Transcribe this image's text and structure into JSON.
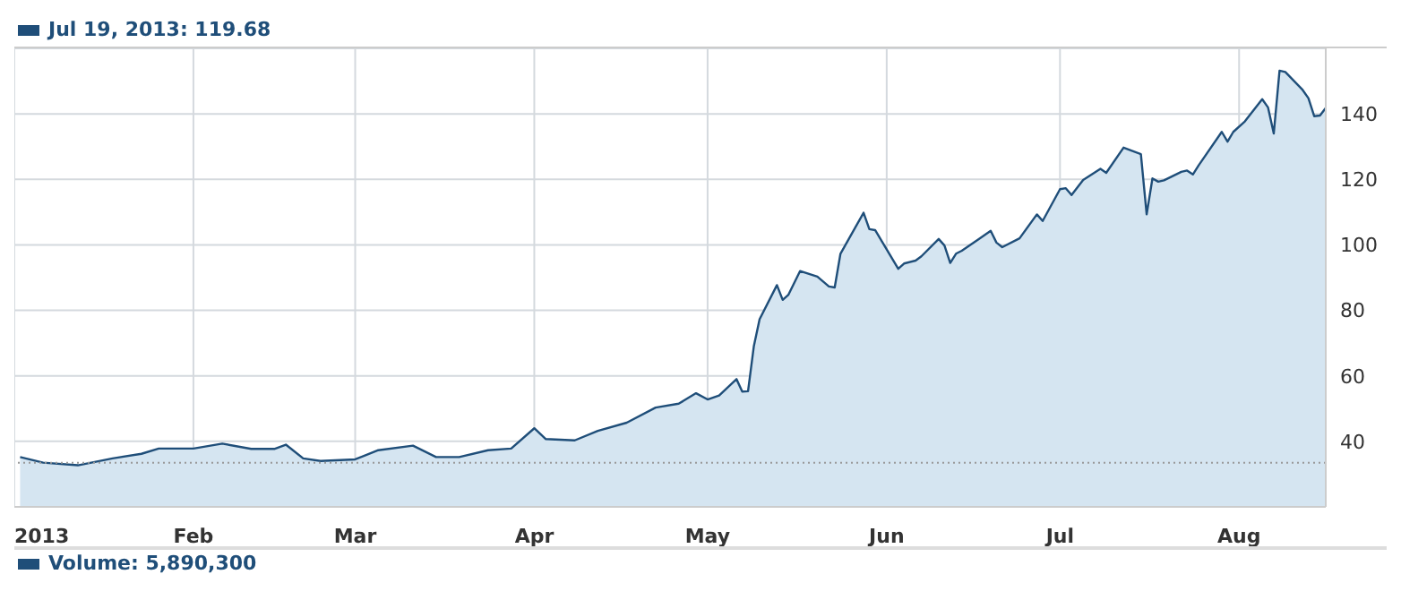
{
  "chart_data": {
    "type": "area",
    "color": "#1f4e79",
    "x": [
      "2013-01-02",
      "2013-01-06",
      "2013-01-12",
      "2013-01-18",
      "2013-01-23",
      "2013-01-26",
      "2013-02-01",
      "2013-02-06",
      "2013-02-11",
      "2013-02-15",
      "2013-02-17",
      "2013-02-20",
      "2013-02-23",
      "2013-03-01",
      "2013-03-05",
      "2013-03-11",
      "2013-03-15",
      "2013-03-19",
      "2013-03-24",
      "2013-03-28",
      "2013-04-01",
      "2013-04-03",
      "2013-04-08",
      "2013-04-12",
      "2013-04-17",
      "2013-04-22",
      "2013-04-26",
      "2013-04-29",
      "2013-05-01",
      "2013-05-03",
      "2013-05-06",
      "2013-05-07",
      "2013-05-08",
      "2013-05-09",
      "2013-05-10",
      "2013-05-13",
      "2013-05-14",
      "2013-05-15",
      "2013-05-17",
      "2013-05-20",
      "2013-05-22",
      "2013-05-23",
      "2013-05-24",
      "2013-05-28",
      "2013-05-29",
      "2013-05-30",
      "2013-06-03",
      "2013-06-04",
      "2013-06-06",
      "2013-06-07",
      "2013-06-10",
      "2013-06-11",
      "2013-06-12",
      "2013-06-13",
      "2013-06-14",
      "2013-06-17",
      "2013-06-19",
      "2013-06-20",
      "2013-06-21",
      "2013-06-24",
      "2013-06-27",
      "2013-06-28",
      "2013-07-01",
      "2013-07-02",
      "2013-07-03",
      "2013-07-05",
      "2013-07-08",
      "2013-07-09",
      "2013-07-12",
      "2013-07-15",
      "2013-07-16",
      "2013-07-17",
      "2013-07-18",
      "2013-07-19",
      "2013-07-22",
      "2013-07-23",
      "2013-07-24",
      "2013-07-25",
      "2013-07-29",
      "2013-07-30",
      "2013-07-31",
      "2013-08-02",
      "2013-08-05",
      "2013-08-06",
      "2013-08-07",
      "2013-08-08",
      "2013-08-09",
      "2013-08-12",
      "2013-08-13",
      "2013-08-14",
      "2013-08-15",
      "2013-08-16"
    ],
    "values": [
      35.2,
      33.5,
      32.7,
      34.8,
      36.2,
      37.8,
      37.8,
      39.3,
      37.7,
      37.7,
      39,
      34.8,
      34,
      34.5,
      37.3,
      38.7,
      35.2,
      35.2,
      37.3,
      37.8,
      44,
      40.7,
      40.3,
      43.2,
      45.7,
      50.3,
      51.5,
      54.7,
      52.8,
      54,
      59,
      55.2,
      55.3,
      69,
      77.3,
      87.7,
      83.2,
      84.8,
      92,
      90.3,
      87.3,
      87,
      97.3,
      109.8,
      104.8,
      104.5,
      92.7,
      94.3,
      95.2,
      96.5,
      101.8,
      99.8,
      94.5,
      97.3,
      98.2,
      101.8,
      104.3,
      100.7,
      99.3,
      102,
      109.3,
      107.3,
      117,
      117.3,
      115.2,
      119.8,
      123.2,
      122,
      129.7,
      127.7,
      109.3,
      120.3,
      119.3,
      119.7,
      122.3,
      122.7,
      121.5,
      124.3,
      134.5,
      131.5,
      134.5,
      137.7,
      144.5,
      142,
      134,
      153.2,
      152.8,
      147.3,
      144.8,
      139.3,
      139.5,
      141.8
    ],
    "xlim": [
      "2013-01-01",
      "2013-08-16"
    ],
    "xticks": [
      {
        "value": "2013-01-01",
        "label": "2013"
      },
      {
        "value": "2013-02-01",
        "label": "Feb"
      },
      {
        "value": "2013-03-01",
        "label": "Mar"
      },
      {
        "value": "2013-04-01",
        "label": "Apr"
      },
      {
        "value": "2013-05-01",
        "label": "May"
      },
      {
        "value": "2013-06-01",
        "label": "Jun"
      },
      {
        "value": "2013-07-01",
        "label": "Jul"
      },
      {
        "value": "2013-08-01",
        "label": "Aug"
      }
    ],
    "ylim": [
      20,
      160
    ],
    "yticks": [
      40,
      60,
      80,
      100,
      120,
      140
    ],
    "grid": true,
    "line_style": "solid",
    "ref_lines": [
      {
        "axis": "y",
        "value": 33.5,
        "line_style": "dotted",
        "color": "#999999"
      }
    ],
    "annotations": [
      "Jul 19, 2013: 119.68",
      "Volume: 5,890,300"
    ]
  }
}
